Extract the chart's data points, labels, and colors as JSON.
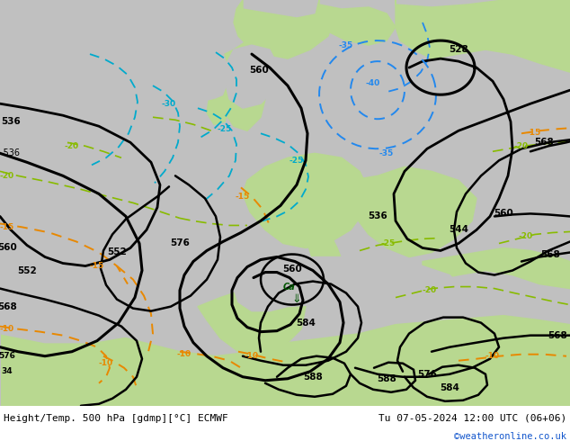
{
  "title_left": "Height/Temp. 500 hPa [gdmp][°C] ECMWF",
  "title_right": "Tu 07-05-2024 12:00 UTC (06+06)",
  "watermark": "©weatheronline.co.uk",
  "bg_gray": "#c8c8c8",
  "land_green_light": "#c8e8a0",
  "land_green_mid": "#b0d880",
  "figsize": [
    6.34,
    4.9
  ],
  "dpi": 100
}
